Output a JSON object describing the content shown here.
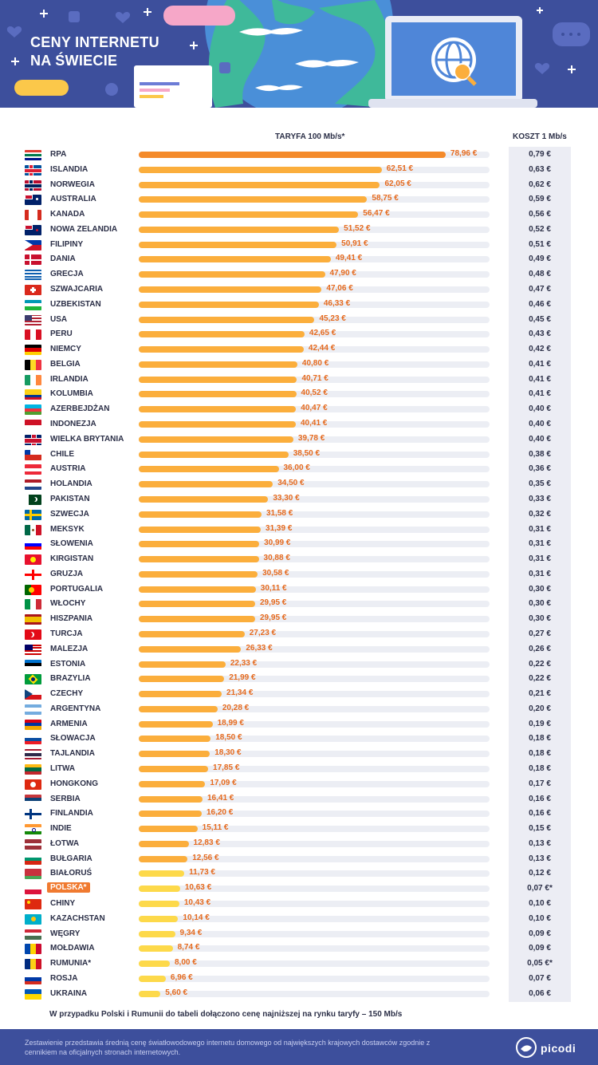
{
  "header": {
    "title_line1": "CENY INTERNETU",
    "title_line2": "NA ŚWIECIE"
  },
  "chart_data": {
    "type": "bar",
    "orientation": "horizontal",
    "col_tariff": "TARYFA 100 Mb/s*",
    "col_cost": "KOSZT 1 Mb/s",
    "xlim": [
      0,
      80
    ],
    "colors": {
      "high": "#f48a2a",
      "mid": "#fbae3c",
      "low": "#fdd94a",
      "label": "#e56a1e"
    },
    "rows": [
      {
        "country": "RPA",
        "tariff": 78.96,
        "tariff_label": "78,96 €",
        "cost": "0,79 €"
      },
      {
        "country": "ISLANDIA",
        "tariff": 62.51,
        "tariff_label": "62,51 €",
        "cost": "0,63 €"
      },
      {
        "country": "NORWEGIA",
        "tariff": 62.05,
        "tariff_label": "62,05 €",
        "cost": "0,62 €"
      },
      {
        "country": "AUSTRALIA",
        "tariff": 58.75,
        "tariff_label": "58,75 €",
        "cost": "0,59 €"
      },
      {
        "country": "KANADA",
        "tariff": 56.47,
        "tariff_label": "56,47 €",
        "cost": "0,56 €"
      },
      {
        "country": "NOWA ZELANDIA",
        "tariff": 51.52,
        "tariff_label": "51,52 €",
        "cost": "0,52 €"
      },
      {
        "country": "FILIPINY",
        "tariff": 50.91,
        "tariff_label": "50,91 €",
        "cost": "0,51 €"
      },
      {
        "country": "DANIA",
        "tariff": 49.41,
        "tariff_label": "49,41 €",
        "cost": "0,49 €"
      },
      {
        "country": "GRECJA",
        "tariff": 47.9,
        "tariff_label": "47,90 €",
        "cost": "0,48 €"
      },
      {
        "country": "SZWAJCARIA",
        "tariff": 47.06,
        "tariff_label": "47,06 €",
        "cost": "0,47 €"
      },
      {
        "country": "UZBEKISTAN",
        "tariff": 46.33,
        "tariff_label": "46,33 €",
        "cost": "0,46 €"
      },
      {
        "country": "USA",
        "tariff": 45.23,
        "tariff_label": "45,23 €",
        "cost": "0,45 €"
      },
      {
        "country": "PERU",
        "tariff": 42.65,
        "tariff_label": "42,65 €",
        "cost": "0,43 €"
      },
      {
        "country": "NIEMCY",
        "tariff": 42.44,
        "tariff_label": "42,44 €",
        "cost": "0,42 €"
      },
      {
        "country": "BELGIA",
        "tariff": 40.8,
        "tariff_label": "40,80 €",
        "cost": "0,41 €"
      },
      {
        "country": "IRLANDIA",
        "tariff": 40.71,
        "tariff_label": "40,71 €",
        "cost": "0,41 €"
      },
      {
        "country": "KOLUMBIA",
        "tariff": 40.52,
        "tariff_label": "40,52 €",
        "cost": "0,41 €"
      },
      {
        "country": "AZERBEJDŻAN",
        "tariff": 40.47,
        "tariff_label": "40,47 €",
        "cost": "0,40 €"
      },
      {
        "country": "INDONEZJA",
        "tariff": 40.41,
        "tariff_label": "40,41 €",
        "cost": "0,40 €"
      },
      {
        "country": "WIELKA BRYTANIA",
        "tariff": 39.78,
        "tariff_label": "39,78 €",
        "cost": "0,40 €"
      },
      {
        "country": "CHILE",
        "tariff": 38.5,
        "tariff_label": "38,50 €",
        "cost": "0,38 €"
      },
      {
        "country": "AUSTRIA",
        "tariff": 36.0,
        "tariff_label": "36,00 €",
        "cost": "0,36 €"
      },
      {
        "country": "HOLANDIA",
        "tariff": 34.5,
        "tariff_label": "34,50 €",
        "cost": "0,35 €"
      },
      {
        "country": "PAKISTAN",
        "tariff": 33.3,
        "tariff_label": "33,30 €",
        "cost": "0,33 €"
      },
      {
        "country": "SZWECJA",
        "tariff": 31.58,
        "tariff_label": "31,58 €",
        "cost": "0,32 €"
      },
      {
        "country": "MEKSYK",
        "tariff": 31.39,
        "tariff_label": "31,39 €",
        "cost": "0,31 €"
      },
      {
        "country": "SŁOWENIA",
        "tariff": 30.99,
        "tariff_label": "30,99 €",
        "cost": "0,31 €"
      },
      {
        "country": "KIRGISTAN",
        "tariff": 30.88,
        "tariff_label": "30,88 €",
        "cost": "0,31 €"
      },
      {
        "country": "GRUZJA",
        "tariff": 30.58,
        "tariff_label": "30,58 €",
        "cost": "0,31 €"
      },
      {
        "country": "PORTUGALIA",
        "tariff": 30.11,
        "tariff_label": "30,11 €",
        "cost": "0,30 €"
      },
      {
        "country": "WŁOCHY",
        "tariff": 29.95,
        "tariff_label": "29,95 €",
        "cost": "0,30 €"
      },
      {
        "country": "HISZPANIA",
        "tariff": 29.95,
        "tariff_label": "29,95 €",
        "cost": "0,30 €"
      },
      {
        "country": "TURCJA",
        "tariff": 27.23,
        "tariff_label": "27,23 €",
        "cost": "0,27 €"
      },
      {
        "country": "MALEZJA",
        "tariff": 26.33,
        "tariff_label": "26,33 €",
        "cost": "0,26 €"
      },
      {
        "country": "ESTONIA",
        "tariff": 22.33,
        "tariff_label": "22,33 €",
        "cost": "0,22 €"
      },
      {
        "country": "BRAZYLIA",
        "tariff": 21.99,
        "tariff_label": "21,99 €",
        "cost": "0,22 €"
      },
      {
        "country": "CZECHY",
        "tariff": 21.34,
        "tariff_label": "21,34 €",
        "cost": "0,21 €"
      },
      {
        "country": "ARGENTYNA",
        "tariff": 20.28,
        "tariff_label": "20,28 €",
        "cost": "0,20 €"
      },
      {
        "country": "ARMENIA",
        "tariff": 18.99,
        "tariff_label": "18,99 €",
        "cost": "0,19 €"
      },
      {
        "country": "SŁOWACJA",
        "tariff": 18.5,
        "tariff_label": "18,50 €",
        "cost": "0,18 €"
      },
      {
        "country": "TAJLANDIA",
        "tariff": 18.3,
        "tariff_label": "18,30 €",
        "cost": "0,18 €"
      },
      {
        "country": "LITWA",
        "tariff": 17.85,
        "tariff_label": "17,85 €",
        "cost": "0,18 €"
      },
      {
        "country": "HONGKONG",
        "tariff": 17.09,
        "tariff_label": "17,09 €",
        "cost": "0,17 €"
      },
      {
        "country": "SERBIA",
        "tariff": 16.41,
        "tariff_label": "16,41 €",
        "cost": "0,16 €"
      },
      {
        "country": "FINLANDIA",
        "tariff": 16.2,
        "tariff_label": "16,20 €",
        "cost": "0,16 €"
      },
      {
        "country": "INDIE",
        "tariff": 15.11,
        "tariff_label": "15,11 €",
        "cost": "0,15 €"
      },
      {
        "country": "ŁOTWA",
        "tariff": 12.83,
        "tariff_label": "12,83 €",
        "cost": "0,13 €"
      },
      {
        "country": "BUŁGARIA",
        "tariff": 12.56,
        "tariff_label": "12,56 €",
        "cost": "0,13 €"
      },
      {
        "country": "BIAŁORUŚ",
        "tariff": 11.73,
        "tariff_label": "11,73 €",
        "cost": "0,12 €"
      },
      {
        "country": "POLSKA*",
        "tariff": 10.63,
        "tariff_label": "10,63 €",
        "cost": "0,07 €*",
        "highlight": true
      },
      {
        "country": "CHINY",
        "tariff": 10.43,
        "tariff_label": "10,43 €",
        "cost": "0,10 €"
      },
      {
        "country": "KAZACHSTAN",
        "tariff": 10.14,
        "tariff_label": "10,14 €",
        "cost": "0,10 €"
      },
      {
        "country": "WĘGRY",
        "tariff": 9.34,
        "tariff_label": "9,34 €",
        "cost": "0,09 €"
      },
      {
        "country": "MOŁDAWIA",
        "tariff": 8.74,
        "tariff_label": "8,74 €",
        "cost": "0,09 €"
      },
      {
        "country": "RUMUNIA*",
        "tariff": 8.0,
        "tariff_label": "8,00 €",
        "cost": "0,05 €*"
      },
      {
        "country": "ROSJA",
        "tariff": 6.96,
        "tariff_label": "6,96 €",
        "cost": "0,07 €"
      },
      {
        "country": "UKRAINA",
        "tariff": 5.6,
        "tariff_label": "5,60 €",
        "cost": "0,06 €"
      }
    ]
  },
  "note": "W przypadku Polski i Rumunii do tabeli dołączono cenę najniższej na rynku taryfy – 150 Mb/s",
  "footer": {
    "text": "Zestawienie przedstawia średnią cenę światłowodowego internetu domowego od największych krajowych dostawców zgodnie z cennikiem na oficjalnych stronach internetowych.",
    "brand": "picodi"
  },
  "flags": [
    "za",
    "is",
    "no",
    "au",
    "ca",
    "nz",
    "ph",
    "dk",
    "gr",
    "ch",
    "uz",
    "us",
    "pe",
    "de",
    "be",
    "ie",
    "co",
    "az",
    "id",
    "gb",
    "cl",
    "at",
    "nl",
    "pk",
    "se",
    "mx",
    "si",
    "kg",
    "ge",
    "pt",
    "it",
    "es",
    "tr",
    "my",
    "ee",
    "br",
    "cz",
    "ar",
    "am",
    "sk",
    "th",
    "lt",
    "hk",
    "rs",
    "fi",
    "in",
    "lv",
    "bg",
    "by",
    "pl",
    "cn",
    "kz",
    "hu",
    "md",
    "ro",
    "ru",
    "ua"
  ]
}
